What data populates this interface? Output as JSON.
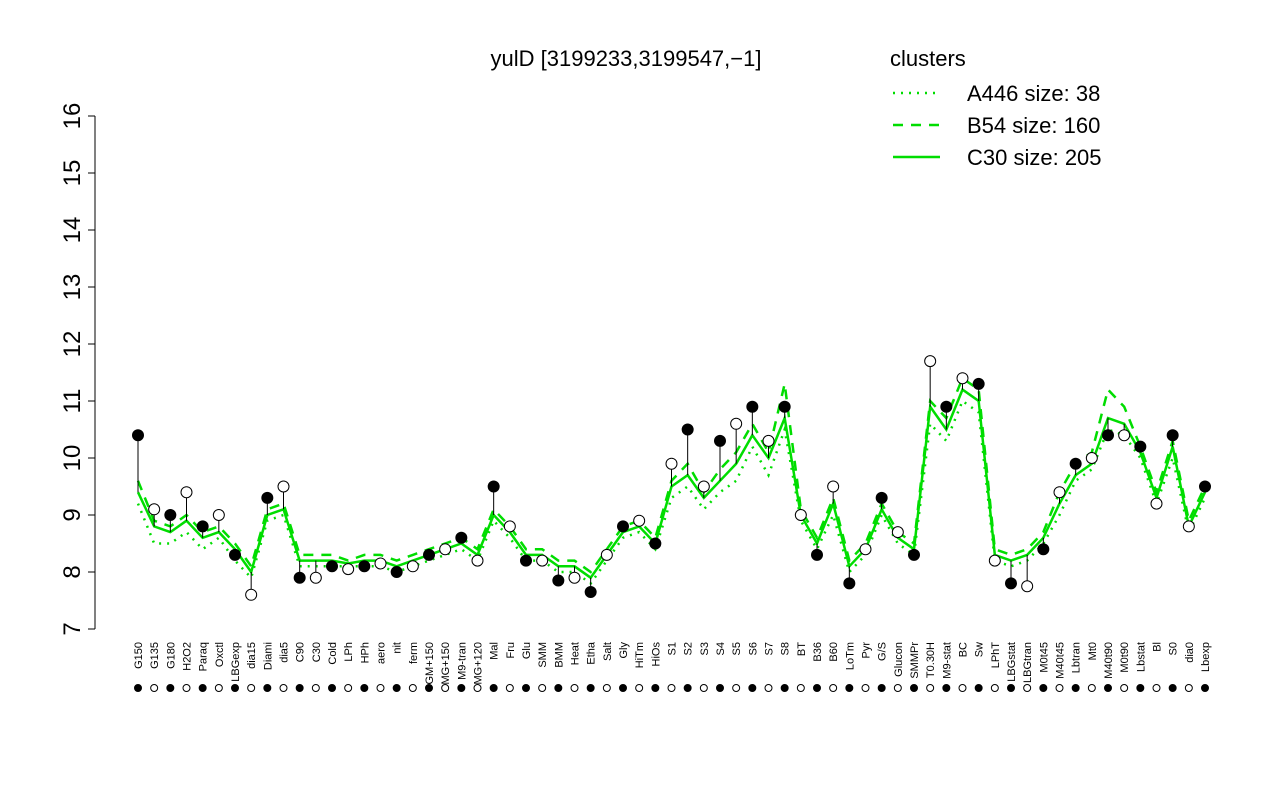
{
  "chart_data": {
    "type": "line",
    "title": "yulD [3199233,3199547,−1]",
    "legend_title": "clusters",
    "legend_color": "#00dd00",
    "categories": [
      "G150",
      "G135",
      "G180",
      "H2O2",
      "Paraq",
      "Oxctl",
      "LBGexp",
      "dia15",
      "Diami",
      "dia5",
      "C90",
      "C30",
      "Cold",
      "LPh",
      "HPh",
      "aero",
      "nit",
      "ferm",
      "GM+150",
      "MG+150",
      "M9-tran",
      "MG+120",
      "Mal",
      "Fru",
      "Glu",
      "SMM",
      "BMM",
      "Heat",
      "Etha",
      "Salt",
      "Gly",
      "HiTm",
      "HiOs",
      "S1",
      "S2",
      "S3",
      "S4",
      "S5",
      "S6",
      "S7",
      "S8",
      "BT",
      "B36",
      "B60",
      "LoTm",
      "Pyr",
      "G/S",
      "Glucon",
      "SMMPr",
      "T0.30H",
      "M9-stat",
      "BC",
      "Sw",
      "LPhT",
      "LBGstat",
      "LBGtran",
      "M0t45",
      "M40t45",
      "Lbtran",
      "Mt0",
      "M40t90",
      "M0t90",
      "Lbstat",
      "Bl",
      "S0",
      "dia0",
      "Lbexp"
    ],
    "values": [
      10.4,
      9.1,
      9.0,
      9.4,
      8.8,
      9.0,
      8.3,
      7.6,
      9.3,
      9.5,
      7.9,
      7.9,
      8.1,
      8.05,
      8.1,
      8.15,
      8.0,
      8.1,
      8.3,
      8.4,
      8.6,
      8.2,
      9.5,
      8.8,
      8.2,
      8.2,
      7.85,
      7.9,
      7.65,
      8.3,
      8.8,
      8.9,
      8.5,
      9.9,
      10.5,
      9.5,
      10.3,
      10.6,
      10.9,
      10.3,
      10.9,
      9.0,
      8.3,
      9.5,
      7.8,
      8.4,
      9.3,
      8.7,
      8.3,
      11.7,
      10.9,
      11.4,
      11.3,
      8.2,
      7.8,
      7.75,
      8.4,
      9.4,
      9.9,
      10.0,
      10.4,
      10.4,
      10.2,
      9.2,
      10.4,
      8.8,
      9.5
    ],
    "color": "#000000",
    "series": [
      {
        "name": "A446 size: 38",
        "color": "#00dd00",
        "style": "dotted",
        "values": [
          9.2,
          8.5,
          8.5,
          8.7,
          8.4,
          8.6,
          8.2,
          7.9,
          8.9,
          9.0,
          8.1,
          8.1,
          8.1,
          8.1,
          8.1,
          8.1,
          8.0,
          8.1,
          8.2,
          8.3,
          8.4,
          8.2,
          8.9,
          8.6,
          8.2,
          8.2,
          8.0,
          8.0,
          7.8,
          8.2,
          8.6,
          8.7,
          8.4,
          9.3,
          9.5,
          9.1,
          9.4,
          9.6,
          10.2,
          9.7,
          10.5,
          8.9,
          8.4,
          9.0,
          8.0,
          8.3,
          9.0,
          8.5,
          8.3,
          10.6,
          10.3,
          11.0,
          10.8,
          8.2,
          8.1,
          8.2,
          8.5,
          9.0,
          9.6,
          9.8,
          10.5,
          10.4,
          10.0,
          9.2,
          10.0,
          8.7,
          9.3
        ]
      },
      {
        "name": "B54 size: 160",
        "color": "#00dd00",
        "style": "dashed",
        "values": [
          9.6,
          8.9,
          8.8,
          9.0,
          8.7,
          8.8,
          8.5,
          8.1,
          9.1,
          9.2,
          8.3,
          8.3,
          8.3,
          8.2,
          8.3,
          8.3,
          8.2,
          8.3,
          8.4,
          8.5,
          8.6,
          8.4,
          9.1,
          8.8,
          8.4,
          8.4,
          8.2,
          8.2,
          8.0,
          8.4,
          8.8,
          8.9,
          8.6,
          9.6,
          9.9,
          9.4,
          9.8,
          10.1,
          10.6,
          10.1,
          11.3,
          9.1,
          8.6,
          9.3,
          8.2,
          8.5,
          9.2,
          8.7,
          8.5,
          11.0,
          10.7,
          11.4,
          11.2,
          8.4,
          8.3,
          8.4,
          8.7,
          9.4,
          9.9,
          10.1,
          11.2,
          10.9,
          10.2,
          9.4,
          10.3,
          8.9,
          9.5
        ]
      },
      {
        "name": "C30 size: 205",
        "color": "#00dd00",
        "style": "solid",
        "values": [
          9.4,
          8.8,
          8.7,
          8.9,
          8.6,
          8.7,
          8.4,
          8.0,
          9.0,
          9.1,
          8.2,
          8.2,
          8.2,
          8.15,
          8.2,
          8.2,
          8.1,
          8.2,
          8.3,
          8.4,
          8.5,
          8.3,
          9.0,
          8.7,
          8.3,
          8.3,
          8.1,
          8.1,
          7.9,
          8.3,
          8.7,
          8.8,
          8.5,
          9.5,
          9.7,
          9.3,
          9.6,
          9.9,
          10.4,
          10.0,
          10.7,
          9.0,
          8.5,
          9.2,
          8.1,
          8.4,
          9.1,
          8.6,
          8.4,
          10.9,
          10.5,
          11.2,
          11.0,
          8.3,
          8.2,
          8.3,
          8.6,
          9.2,
          9.7,
          9.9,
          10.7,
          10.6,
          10.1,
          9.3,
          10.2,
          8.8,
          9.4
        ]
      }
    ],
    "ylim": [
      7,
      16
    ],
    "yticks": [
      7,
      8,
      9,
      10,
      11,
      12,
      13,
      14,
      15,
      16
    ],
    "grid": false
  }
}
